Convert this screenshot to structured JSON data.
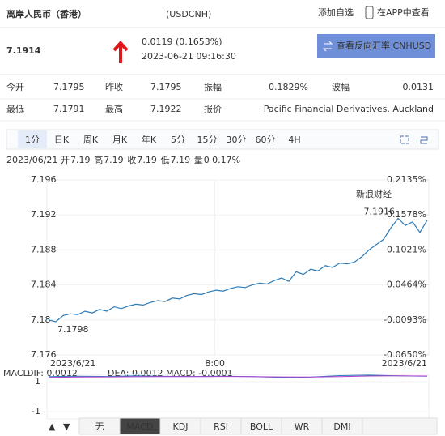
{
  "header": {
    "title": "离岸人民币（香港）",
    "code": "(USDCNH)",
    "add_watch": "添加自选",
    "open_app": "在APP中查看"
  },
  "quote": {
    "price": "7.1914",
    "change": "0.0119 (0.1653%)",
    "time": "2023-06-21 09:16:30",
    "reverse_button": "查看反向汇率 CNHUSD"
  },
  "stats": {
    "rows": [
      [
        [
          "今开",
          "7.1795"
        ],
        [
          "昨收",
          "7.1795"
        ],
        [
          "振幅",
          "0.1829%"
        ],
        [
          "波幅",
          "0.0131"
        ]
      ],
      [
        [
          "最低",
          "7.1791"
        ],
        [
          "最高",
          "7.1922"
        ],
        [
          "报价",
          "Pacific Financial Derivatives. Auckland"
        ]
      ]
    ]
  },
  "tabs": [
    "1分",
    "日K",
    "周K",
    "月K",
    "年K",
    "5分",
    "15分",
    "30分",
    "60分",
    "4H"
  ],
  "active_tab": 0,
  "ohlc": {
    "date": "2023/06/21",
    "items": [
      [
        "开",
        "7.19"
      ],
      [
        "高",
        "7.19"
      ],
      [
        "收",
        "7.19"
      ],
      [
        "低",
        "7.19"
      ],
      [
        "量",
        "0"
      ]
    ],
    "pct": "0.17%"
  },
  "chart_data": {
    "type": "line",
    "color": "#2b7bb9",
    "watermark": "新浪财经",
    "values": [
      7.18,
      7.1798,
      7.1805,
      7.1807,
      7.1806,
      7.181,
      7.1808,
      7.1812,
      7.181,
      7.1815,
      7.1813,
      7.1816,
      7.1818,
      7.1817,
      7.182,
      7.1822,
      7.1821,
      7.1825,
      7.1824,
      7.1828,
      7.183,
      7.1829,
      7.1832,
      7.1834,
      7.1833,
      7.1836,
      7.1838,
      7.1837,
      7.184,
      7.1842,
      7.1841,
      7.1845,
      7.1848,
      7.1844,
      7.1855,
      7.1852,
      7.1858,
      7.1856,
      7.1862,
      7.186,
      7.1865,
      7.1864,
      7.1866,
      7.1872,
      7.188,
      7.1886,
      7.1892,
      7.1905,
      7.1916,
      7.1908,
      7.1912,
      7.19,
      7.1914
    ],
    "high_label": "7.1916",
    "low_label": "7.1798",
    "x_labels": [
      "2023/6/21",
      "8:00",
      "2023/6/21"
    ],
    "ylim": [
      7.176,
      7.196
    ],
    "yticks": [
      7.196,
      7.192,
      7.188,
      7.184,
      7.18,
      7.176
    ],
    "y2lim": [
      -0.065,
      0.2135
    ],
    "y2ticks": [
      {
        "value": 0.2135,
        "label": "0.2135%"
      },
      {
        "value": 0.1578,
        "label": "0.1578%"
      },
      {
        "value": 0.1021,
        "label": "0.1021%"
      },
      {
        "value": 0.0464,
        "label": "0.0464%"
      },
      {
        "value": -0.0093,
        "label": "-0.0093%"
      },
      {
        "value": -0.065,
        "label": "-0.0650%"
      }
    ]
  },
  "macd": {
    "label": "MACD",
    "dif": "DIF: 0.0012",
    "dea": "DEA: 0.0012",
    "macd": "MACD: -0.0001",
    "ylim": [
      -1.5,
      1.5
    ],
    "yticks": [
      1,
      -1
    ],
    "dif_values": [
      1.35,
      1.38,
      1.36,
      1.4,
      1.37,
      1.36,
      1.38,
      1.35,
      1.3,
      1.32,
      1.42,
      1.45,
      1.4,
      1.38
    ],
    "dea_values": [
      1.3,
      1.32,
      1.33,
      1.34,
      1.35,
      1.35,
      1.36,
      1.35,
      1.33,
      1.32,
      1.35,
      1.39,
      1.4,
      1.39
    ]
  },
  "indicator_tabs": [
    "无",
    "MACD",
    "KDJ",
    "RSI",
    "BOLL",
    "WR",
    "DMI"
  ],
  "active_indicator": 1
}
